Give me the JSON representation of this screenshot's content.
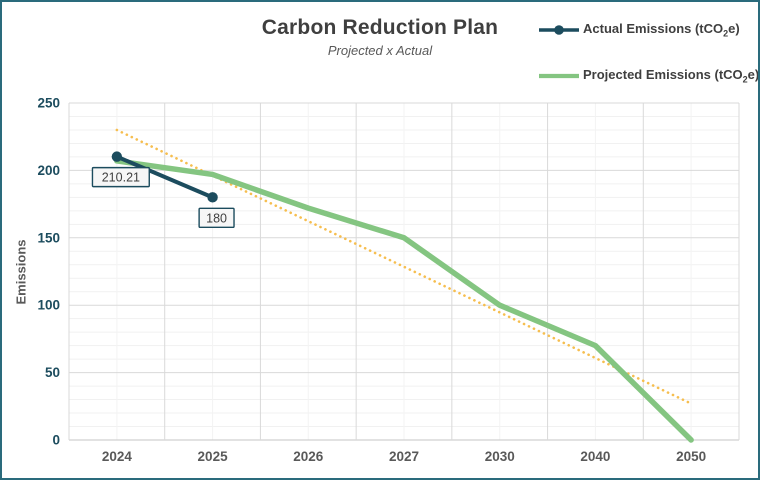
{
  "frame": {
    "border_color": "#2a6b7c",
    "background": "#ffffff"
  },
  "header": {
    "title": "Carbon Reduction Plan",
    "subtitle": "Projected x Actual"
  },
  "legend": {
    "items": [
      {
        "name": "actual",
        "prefix": "Actual Emissions (tCO",
        "sub": "2",
        "suffix": "e)",
        "color": "#1c4c5e",
        "marker": "line-circle"
      },
      {
        "name": "projected",
        "prefix": "Projected Emissions (tCO",
        "sub": "2",
        "suffix": "e)",
        "color": "#84c581",
        "marker": "line"
      }
    ]
  },
  "chart_data": {
    "type": "line",
    "categories": [
      "2024",
      "2025",
      "2026",
      "2027",
      "2030",
      "2040",
      "2050"
    ],
    "series": [
      {
        "name": "Actual Emissions (tCO2e)",
        "color": "#1c4c5e",
        "values": [
          210.21,
          180,
          null,
          null,
          null,
          null,
          null
        ],
        "markers": true,
        "data_labels": [
          "210.21",
          "180"
        ]
      },
      {
        "name": "Projected Emissions (tCO2e)",
        "color": "#84c581",
        "values": [
          207,
          197,
          172,
          150,
          100,
          70,
          0
        ],
        "markers": false
      }
    ],
    "trendline": {
      "color": "#f6be4f",
      "style": "dotted",
      "start_value": 230,
      "end_value": 27
    },
    "title": "Carbon Reduction Plan",
    "subtitle": "Projected x Actual",
    "xlabel": "",
    "ylabel": "Emissions",
    "ylim": [
      0,
      250
    ],
    "y_ticks": [
      0,
      50,
      100,
      150,
      200,
      250
    ],
    "y_minor_step": 10,
    "grid": true,
    "legend_position": "top-right",
    "colors": {
      "major_grid": "#d9d9d9",
      "minor_grid": "#f1f1f1",
      "axis_line": "#c6c6c6",
      "label_box_fill": "#f6f6f6"
    }
  }
}
